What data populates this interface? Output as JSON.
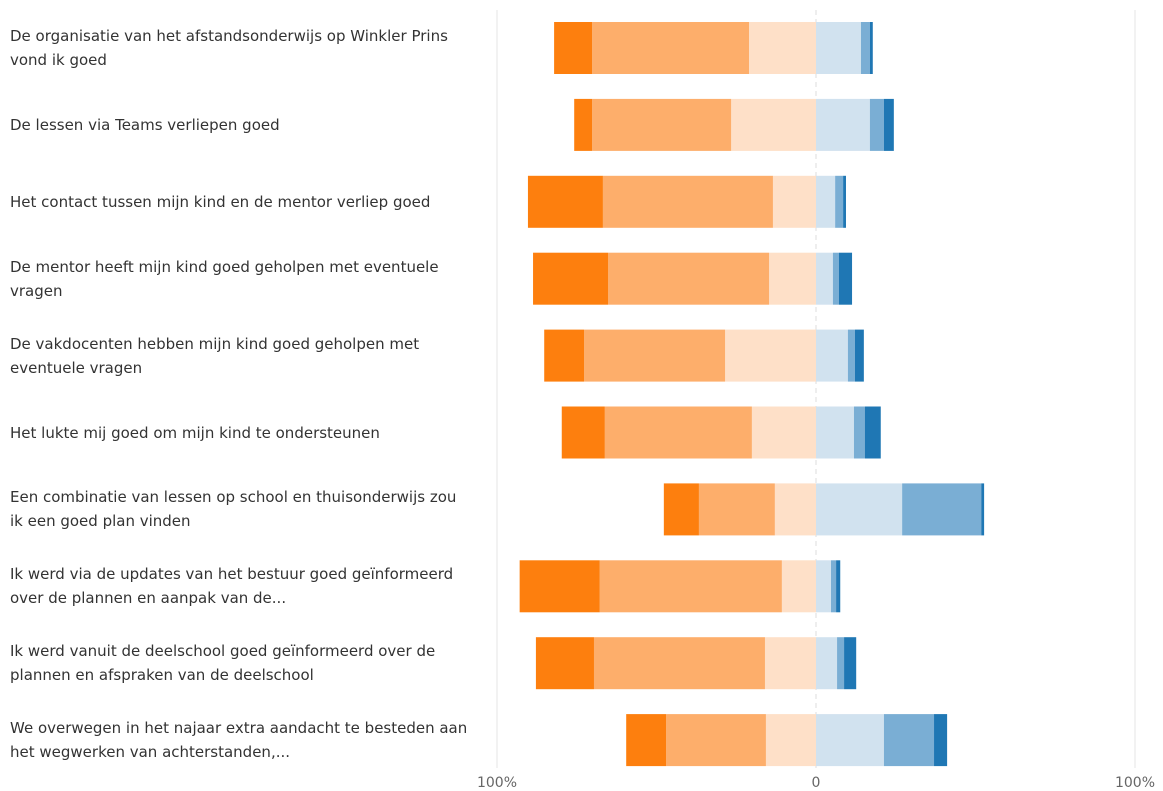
{
  "chart_data": {
    "type": "diverging-bar",
    "categories": [
      "De organisatie van het afstandsonderwijs op Winkler Prins vond ik goed",
      "De lessen via Teams verliepen goed",
      "Het contact tussen mijn kind en de mentor verliep goed",
      "De mentor heeft mijn kind goed geholpen met eventuele vragen",
      "De vakdocenten hebben mijn kind goed geholpen met eventuele vragen",
      "Het lukte mij goed om mijn kind te ondersteunen",
      "Een combinatie van lessen op school en thuisonderwijs zou ik een goed plan vinden",
      "Ik werd via de updates van het bestuur goed geïnformeerd over de plannen en aanpak van de...",
      "Ik werd vanuit de deelschool goed geïnformeerd over de plannen en afspraken van de deelschool",
      "We overwegen in het najaar extra aandacht te besteden aan het wegwerken van achterstanden,..."
    ],
    "series": [
      {
        "color": "#fee0c8",
        "values": [
          -21,
          -26.6,
          -13.5,
          -14.7,
          -28.5,
          -20.1,
          -12.9,
          -10.7,
          -16,
          -15.7
        ]
      },
      {
        "color": "#fdae6b",
        "values": [
          -49.2,
          -43.6,
          -53.3,
          -50.5,
          -44.2,
          -46.1,
          -23.8,
          -57.1,
          -53.6,
          -31.3
        ]
      },
      {
        "color": "#fd7f0e",
        "values": [
          -11.9,
          -5.6,
          -23.5,
          -23.5,
          -12.5,
          -13.5,
          -11,
          -25.1,
          -18.2,
          -12.5
        ]
      },
      {
        "color": "#d1e2ef",
        "values": [
          14.1,
          16.9,
          6,
          5.3,
          10,
          11.9,
          27,
          4.7,
          6.6,
          21.3
        ]
      },
      {
        "color": "#7aaed4",
        "values": [
          2.8,
          4.4,
          2.5,
          1.9,
          2.2,
          3.4,
          24.8,
          1.6,
          2.2,
          15.7
        ]
      },
      {
        "color": "#1f77b4",
        "values": [
          0.9,
          3.1,
          0.9,
          4.1,
          2.8,
          5,
          0.9,
          1.3,
          3.8,
          4.1
        ]
      }
    ],
    "xlim": [
      -100,
      100
    ],
    "xticks": [
      {
        "value": -100,
        "label": "100%"
      },
      0,
      {
        "value": 100,
        "label": "100%"
      }
    ],
    "grid": true
  }
}
